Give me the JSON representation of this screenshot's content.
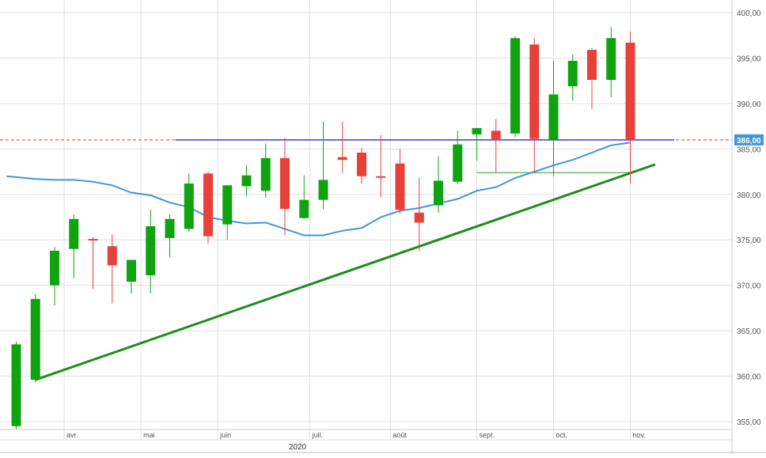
{
  "chart_data": {
    "type": "candlestick",
    "y_ticks": [
      "355,00",
      "360,00",
      "365,00",
      "370,00",
      "375,00",
      "380,00",
      "385,00",
      "390,00",
      "395,00",
      "400,00"
    ],
    "ylim": [
      353,
      401.5
    ],
    "x_month_labels": [
      {
        "label": "avr.",
        "index": 2.5
      },
      {
        "label": "mai",
        "index": 6.5
      },
      {
        "label": "juin",
        "index": 10.5
      },
      {
        "label": "juil.",
        "index": 15.3
      },
      {
        "label": "août",
        "index": 19.5
      },
      {
        "label": "sept.",
        "index": 24.0
      },
      {
        "label": "oct.",
        "index": 28.0
      },
      {
        "label": "nov.",
        "index": 32.0
      }
    ],
    "year_label": {
      "label": "2020",
      "index": 14.2
    },
    "current_price": "386,00",
    "current_value": 386.0,
    "candles": [
      {
        "o": 354.5,
        "h": 363.8,
        "l": 354.2,
        "c": 363.5
      },
      {
        "o": 359.6,
        "h": 369.0,
        "l": 359.3,
        "c": 368.5
      },
      {
        "o": 370.0,
        "h": 374.2,
        "l": 367.8,
        "c": 373.8
      },
      {
        "o": 374.0,
        "h": 377.8,
        "l": 370.8,
        "c": 377.3
      },
      {
        "o": 375.1,
        "h": 375.3,
        "l": 369.6,
        "c": 375.0
      },
      {
        "o": 374.3,
        "h": 375.6,
        "l": 368.0,
        "c": 372.2
      },
      {
        "o": 370.4,
        "h": 372.8,
        "l": 369.1,
        "c": 372.8
      },
      {
        "o": 371.1,
        "h": 378.3,
        "l": 369.1,
        "c": 376.5
      },
      {
        "o": 375.2,
        "h": 377.8,
        "l": 373.1,
        "c": 377.3
      },
      {
        "o": 376.2,
        "h": 382.3,
        "l": 375.9,
        "c": 381.2
      },
      {
        "o": 382.3,
        "h": 382.5,
        "l": 374.6,
        "c": 375.4
      },
      {
        "o": 376.7,
        "h": 381.0,
        "l": 375.0,
        "c": 381.0
      },
      {
        "o": 380.9,
        "h": 383.2,
        "l": 379.8,
        "c": 382.1
      },
      {
        "o": 380.4,
        "h": 385.6,
        "l": 379.6,
        "c": 384.0
      },
      {
        "o": 384.0,
        "h": 386.2,
        "l": 375.5,
        "c": 378.4
      },
      {
        "o": 377.4,
        "h": 382.1,
        "l": 377.3,
        "c": 379.4
      },
      {
        "o": 379.4,
        "h": 388.0,
        "l": 378.4,
        "c": 381.6
      },
      {
        "o": 384.1,
        "h": 388.0,
        "l": 382.4,
        "c": 383.8
      },
      {
        "o": 384.6,
        "h": 385.1,
        "l": 381.2,
        "c": 382.0
      },
      {
        "o": 382.0,
        "h": 386.5,
        "l": 379.7,
        "c": 381.9
      },
      {
        "o": 383.4,
        "h": 385.0,
        "l": 377.9,
        "c": 378.3
      },
      {
        "o": 378.0,
        "h": 381.8,
        "l": 373.8,
        "c": 376.9
      },
      {
        "o": 378.8,
        "h": 384.2,
        "l": 378.0,
        "c": 381.5
      },
      {
        "o": 381.4,
        "h": 387.0,
        "l": 381.2,
        "c": 385.5
      },
      {
        "o": 386.6,
        "h": 387.3,
        "l": 383.7,
        "c": 387.3
      },
      {
        "o": 387.0,
        "h": 388.3,
        "l": 382.4,
        "c": 386.0
      },
      {
        "o": 386.7,
        "h": 397.4,
        "l": 386.3,
        "c": 397.2
      },
      {
        "o": 396.5,
        "h": 397.2,
        "l": 382.3,
        "c": 386.1
      },
      {
        "o": 386.0,
        "h": 394.7,
        "l": 382.0,
        "c": 391.0
      },
      {
        "o": 391.9,
        "h": 395.4,
        "l": 390.3,
        "c": 394.7
      },
      {
        "o": 395.9,
        "h": 396.1,
        "l": 389.4,
        "c": 392.6
      },
      {
        "o": 392.6,
        "h": 398.4,
        "l": 390.7,
        "c": 397.2
      },
      {
        "o": 396.7,
        "h": 397.9,
        "l": 381.2,
        "c": 386.0
      }
    ],
    "moving_average": [
      [
        -0.5,
        382.0
      ],
      [
        1,
        381.7
      ],
      [
        2,
        381.6
      ],
      [
        3,
        381.6
      ],
      [
        4,
        381.4
      ],
      [
        5,
        381.0
      ],
      [
        6,
        380.2
      ],
      [
        7,
        379.9
      ],
      [
        8,
        379.1
      ],
      [
        9,
        378.6
      ],
      [
        10,
        377.5
      ],
      [
        11,
        377.1
      ],
      [
        12,
        376.8
      ],
      [
        13,
        376.9
      ],
      [
        14,
        376.2
      ],
      [
        15,
        375.5
      ],
      [
        16,
        375.5
      ],
      [
        17,
        376.0
      ],
      [
        18,
        376.3
      ],
      [
        19,
        377.5
      ],
      [
        20,
        378.2
      ],
      [
        21,
        378.5
      ],
      [
        22,
        379.0
      ],
      [
        23,
        379.5
      ],
      [
        24,
        380.4
      ],
      [
        25,
        380.8
      ],
      [
        26,
        381.8
      ],
      [
        27,
        382.5
      ],
      [
        28,
        383.2
      ],
      [
        29,
        383.8
      ],
      [
        30,
        384.6
      ],
      [
        31,
        385.4
      ],
      [
        32,
        385.7
      ]
    ],
    "trendline": {
      "from": [
        1.0,
        359.6
      ],
      "to": [
        33.3,
        383.3
      ],
      "color": "#1e8c1e"
    },
    "support_line": {
      "from": [
        24.0,
        382.4
      ],
      "to": [
        32.0,
        382.4
      ],
      "color": "#2e9c2e"
    },
    "resistance_line": {
      "from": [
        8.3,
        386.0
      ],
      "to": [
        34.3,
        386.0
      ],
      "color": "#3f3fd6"
    },
    "colors": {
      "up": "#0fa40f",
      "down": "#e8403a",
      "moving_average": "#3f97d8",
      "price_dashed": "#d04040",
      "price_label_bg": "#3f97d8",
      "grid": "#e0e0e0",
      "axis_text": "#555555"
    }
  }
}
